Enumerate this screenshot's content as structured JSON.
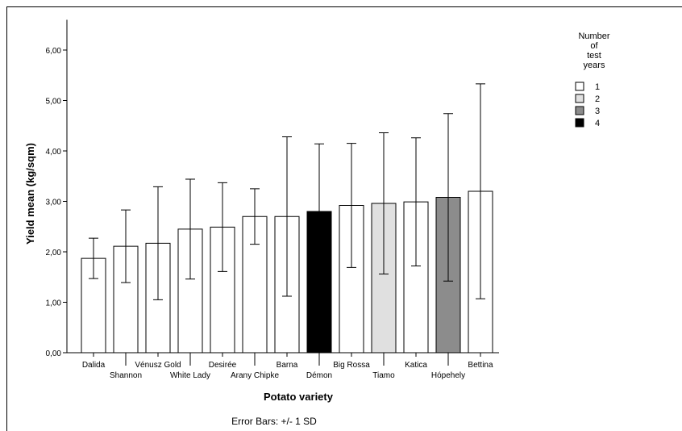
{
  "chart_data": {
    "type": "bar",
    "title": "",
    "xlabel": "Potato variety",
    "ylabel": "Yield mean (kg/sqm)",
    "ylim": [
      0,
      6.6
    ],
    "yticks": [
      "0,00",
      "1,00",
      "2,00",
      "3,00",
      "4,00",
      "5,00",
      "6,00"
    ],
    "categories": [
      "Dalida",
      "Shannon",
      "Vénusz Gold",
      "White Lady",
      "Desirée",
      "Arany Chipke",
      "Barna",
      "Démon",
      "Big Rossa",
      "Tiamo",
      "Katica",
      "Hópehely",
      "Bettina"
    ],
    "values": [
      1.87,
      2.11,
      2.17,
      2.45,
      2.49,
      2.7,
      2.7,
      2.8,
      2.92,
      2.96,
      2.99,
      3.08,
      3.2
    ],
    "sd": [
      0.4,
      0.72,
      1.12,
      0.99,
      0.88,
      0.55,
      1.58,
      1.34,
      1.23,
      1.4,
      1.27,
      1.66,
      2.13
    ],
    "test_years": [
      1,
      1,
      1,
      1,
      1,
      1,
      1,
      4,
      1,
      2,
      1,
      3,
      1
    ],
    "grid": false,
    "legend": {
      "title_lines": [
        "Number",
        "of",
        "test",
        "years"
      ],
      "placement": "top-right",
      "items": [
        {
          "label": "1",
          "color": "#ffffff"
        },
        {
          "label": "2",
          "color": "#e0e0e0"
        },
        {
          "label": "3",
          "color": "#8c8c8c"
        },
        {
          "label": "4",
          "color": "#000000"
        }
      ]
    },
    "footnote": "Error Bars: +/- 1 SD"
  }
}
